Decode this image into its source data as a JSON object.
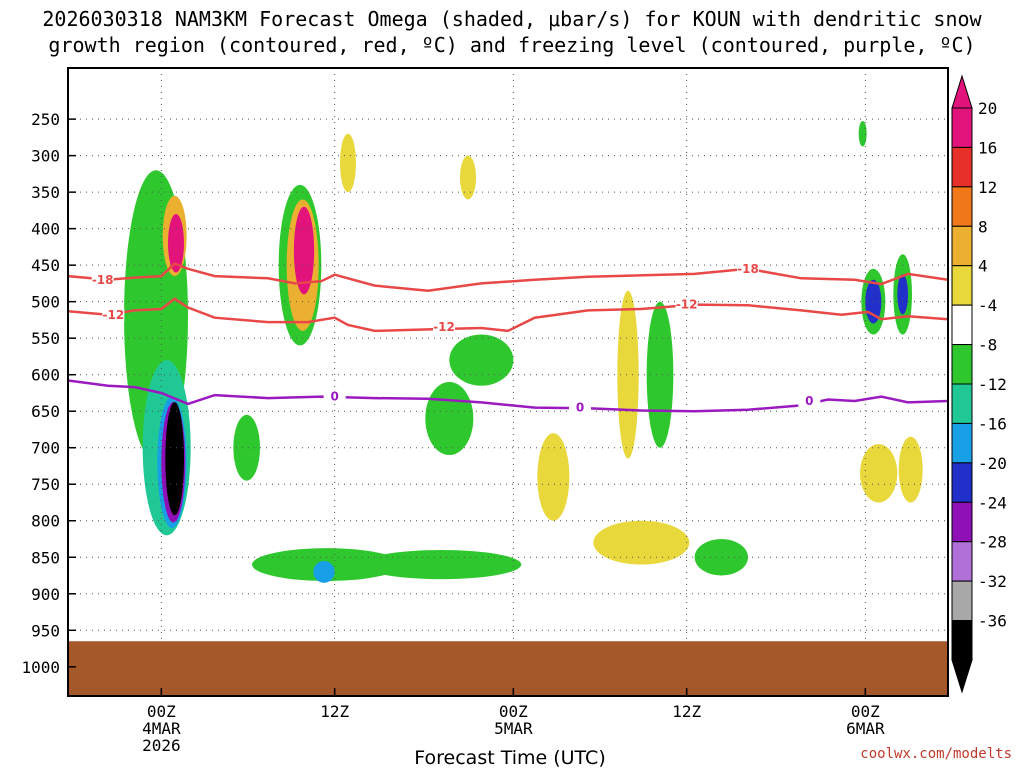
{
  "chart_data": {
    "type": "contour",
    "title_line1": "2026030318 NAM3KM Forecast Omega (shaded, μbar/s) for KOUN with dendritic snow",
    "title_line2": "growth region (contoured, red, ºC) and freezing level (contoured, purple, ºC)",
    "xlabel": "Forecast Time (UTC)",
    "credit": "coolwx.com/modelts",
    "x_range_hours": [
      -3.5,
      29.5
    ],
    "x_ticks": [
      {
        "hour": 0,
        "lines": [
          "00Z",
          "4MAR",
          "2026"
        ]
      },
      {
        "hour": 6.5,
        "lines": [
          "12Z"
        ]
      },
      {
        "hour": 13.2,
        "lines": [
          "00Z",
          "5MAR"
        ]
      },
      {
        "hour": 19.7,
        "lines": [
          "12Z"
        ]
      },
      {
        "hour": 26.4,
        "lines": [
          "00Z",
          "6MAR"
        ]
      }
    ],
    "y_range_hpa": [
      180,
      1040
    ],
    "y_ticks": [
      250,
      300,
      350,
      400,
      450,
      500,
      550,
      600,
      650,
      700,
      750,
      800,
      850,
      900,
      950,
      1000
    ],
    "grid": true,
    "surface_hpa": 965,
    "colorbar": {
      "labels": [
        "20",
        "16",
        "12",
        "8",
        "4",
        "-4",
        "-8",
        "-12",
        "-16",
        "-20",
        "-24",
        "-28",
        "-32",
        "-36"
      ],
      "colors": [
        "#e2137a",
        "#e8302b",
        "#f07818",
        "#ebb030",
        "#e8d83c",
        "#ffffff",
        "#2ec82e",
        "#20c896",
        "#18a0e6",
        "#2030c8",
        "#9010b8",
        "#b070d8",
        "#a8a8a8",
        "#000000"
      ]
    },
    "contours": [
      {
        "name": "-18",
        "color": "#e84848",
        "points": [
          [
            -3.5,
            465
          ],
          [
            -2,
            470
          ],
          [
            -1,
            467
          ],
          [
            0,
            465
          ],
          [
            0.5,
            448
          ],
          [
            1,
            455
          ],
          [
            2,
            465
          ],
          [
            4,
            468
          ],
          [
            5,
            475
          ],
          [
            6,
            472
          ],
          [
            6.5,
            463
          ],
          [
            8,
            478
          ],
          [
            10,
            485
          ],
          [
            12,
            475
          ],
          [
            14,
            470
          ],
          [
            16,
            466
          ],
          [
            20,
            462
          ],
          [
            22,
            455
          ],
          [
            24,
            468
          ],
          [
            26,
            470
          ],
          [
            27,
            476
          ],
          [
            28,
            462
          ],
          [
            29.5,
            470
          ]
        ],
        "labels": [
          [
            -2.2,
            470
          ],
          [
            22,
            455
          ]
        ]
      },
      {
        "name": "-12",
        "color": "#e84848",
        "points": [
          [
            -3.5,
            513
          ],
          [
            -2,
            518
          ],
          [
            -1,
            512
          ],
          [
            0,
            510
          ],
          [
            0.5,
            496
          ],
          [
            1,
            508
          ],
          [
            2,
            522
          ],
          [
            4,
            528
          ],
          [
            5.5,
            528
          ],
          [
            6.5,
            522
          ],
          [
            7,
            532
          ],
          [
            8,
            540
          ],
          [
            10,
            538
          ],
          [
            12,
            536
          ],
          [
            13,
            540
          ],
          [
            14,
            522
          ],
          [
            16,
            512
          ],
          [
            18,
            510
          ],
          [
            20,
            504
          ],
          [
            22,
            505
          ],
          [
            24,
            512
          ],
          [
            25.5,
            518
          ],
          [
            26.5,
            514
          ],
          [
            27,
            524
          ],
          [
            28,
            520
          ],
          [
            29.5,
            524
          ]
        ],
        "labels": [
          [
            -1.8,
            518
          ],
          [
            10.6,
            535
          ],
          [
            19.7,
            504
          ]
        ]
      },
      {
        "name": "0",
        "color": "#9a1ac0",
        "points": [
          [
            -3.5,
            608
          ],
          [
            -2,
            615
          ],
          [
            -1,
            617
          ],
          [
            0,
            625
          ],
          [
            1,
            640
          ],
          [
            2,
            628
          ],
          [
            4,
            632
          ],
          [
            6,
            630
          ],
          [
            8,
            632
          ],
          [
            10,
            633
          ],
          [
            12,
            638
          ],
          [
            14,
            645
          ],
          [
            16,
            646
          ],
          [
            18,
            649
          ],
          [
            20,
            650
          ],
          [
            22,
            648
          ],
          [
            24,
            642
          ],
          [
            25,
            634
          ],
          [
            26,
            636
          ],
          [
            27,
            630
          ],
          [
            28,
            638
          ],
          [
            29.5,
            636
          ]
        ],
        "labels": [
          [
            6.5,
            630
          ],
          [
            15.7,
            645
          ],
          [
            24.3,
            636
          ]
        ]
      }
    ],
    "omega_regions": [
      {
        "hour": -0.2,
        "hpa": 520,
        "rx": 1.2,
        "ry": 400,
        "color": "#2ec82e"
      },
      {
        "hour": 0.2,
        "hpa": 700,
        "rx": 0.9,
        "ry": 240,
        "color": "#20c896"
      },
      {
        "hour": 0.4,
        "hpa": 720,
        "rx": 0.55,
        "ry": 180,
        "color": "#18a0e6"
      },
      {
        "hour": 0.45,
        "hpa": 720,
        "rx": 0.45,
        "ry": 165,
        "color": "#9010b8"
      },
      {
        "hour": 0.5,
        "hpa": 715,
        "rx": 0.35,
        "ry": 155,
        "color": "#000000"
      },
      {
        "hour": 0.5,
        "hpa": 410,
        "rx": 0.45,
        "ry": 110,
        "color": "#ebb030"
      },
      {
        "hour": 0.55,
        "hpa": 420,
        "rx": 0.3,
        "ry": 80,
        "color": "#e2137a"
      },
      {
        "hour": 5.2,
        "hpa": 450,
        "rx": 0.8,
        "ry": 220,
        "color": "#2ec82e"
      },
      {
        "hour": 5.3,
        "hpa": 450,
        "rx": 0.6,
        "ry": 180,
        "color": "#ebb030"
      },
      {
        "hour": 5.35,
        "hpa": 430,
        "rx": 0.38,
        "ry": 120,
        "color": "#e2137a"
      },
      {
        "hour": 6.2,
        "hpa": 860,
        "rx": 2.8,
        "ry": 45,
        "color": "#2ec82e"
      },
      {
        "hour": 6.1,
        "hpa": 870,
        "rx": 0.4,
        "ry": 30,
        "color": "#18a0e6"
      },
      {
        "hour": 10.8,
        "hpa": 660,
        "rx": 0.9,
        "ry": 100,
        "color": "#2ec82e"
      },
      {
        "hour": 10.5,
        "hpa": 860,
        "rx": 3.0,
        "ry": 40,
        "color": "#2ec82e"
      },
      {
        "hour": 14.7,
        "hpa": 740,
        "rx": 0.6,
        "ry": 120,
        "color": "#e8d83c"
      },
      {
        "hour": 17.5,
        "hpa": 600,
        "rx": 0.4,
        "ry": 230,
        "color": "#e8d83c"
      },
      {
        "hour": 18.7,
        "hpa": 600,
        "rx": 0.5,
        "ry": 200,
        "color": "#2ec82e"
      },
      {
        "hour": 18.0,
        "hpa": 830,
        "rx": 1.8,
        "ry": 60,
        "color": "#e8d83c"
      },
      {
        "hour": 21.0,
        "hpa": 850,
        "rx": 1.0,
        "ry": 50,
        "color": "#2ec82e"
      },
      {
        "hour": 26.7,
        "hpa": 500,
        "rx": 0.45,
        "ry": 90,
        "color": "#2ec82e"
      },
      {
        "hour": 26.7,
        "hpa": 500,
        "rx": 0.3,
        "ry": 60,
        "color": "#2030c8"
      },
      {
        "hour": 27.8,
        "hpa": 490,
        "rx": 0.35,
        "ry": 110,
        "color": "#2ec82e"
      },
      {
        "hour": 27.8,
        "hpa": 490,
        "rx": 0.2,
        "ry": 55,
        "color": "#2030c8"
      },
      {
        "hour": 26.9,
        "hpa": 735,
        "rx": 0.7,
        "ry": 80,
        "color": "#e8d83c"
      },
      {
        "hour": 28.1,
        "hpa": 730,
        "rx": 0.45,
        "ry": 90,
        "color": "#e8d83c"
      },
      {
        "hour": 12.0,
        "hpa": 580,
        "rx": 1.2,
        "ry": 70,
        "color": "#2ec82e"
      },
      {
        "hour": 3.2,
        "hpa": 700,
        "rx": 0.5,
        "ry": 90,
        "color": "#2ec82e"
      },
      {
        "hour": 7.0,
        "hpa": 310,
        "rx": 0.3,
        "ry": 80,
        "color": "#e8d83c"
      },
      {
        "hour": 11.5,
        "hpa": 330,
        "rx": 0.3,
        "ry": 60,
        "color": "#e8d83c"
      },
      {
        "hour": 26.3,
        "hpa": 270,
        "rx": 0.15,
        "ry": 35,
        "color": "#2ec82e"
      }
    ]
  }
}
